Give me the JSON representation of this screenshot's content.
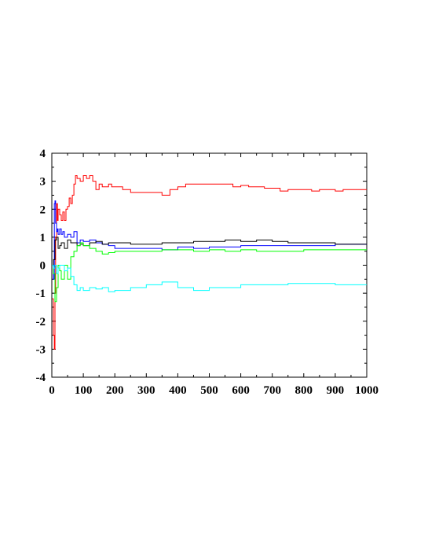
{
  "chart_data": {
    "type": "line",
    "title": "",
    "xlabel": "",
    "ylabel": "",
    "xlim": [
      0,
      1000
    ],
    "ylim": [
      -4,
      4
    ],
    "x_ticks": [
      0,
      100,
      200,
      300,
      400,
      500,
      600,
      700,
      800,
      900,
      1000
    ],
    "y_ticks": [
      -4,
      -3,
      -2,
      -1,
      0,
      1,
      2,
      3,
      4
    ],
    "x_tick_labels": [
      "0",
      "100",
      "200",
      "300",
      "400",
      "500",
      "600",
      "700",
      "800",
      "900",
      "1000"
    ],
    "y_tick_labels": [
      "-4",
      "-3",
      "-2",
      "-1",
      "0",
      "1",
      "2",
      "3",
      "4"
    ],
    "grid": false,
    "legend": "none",
    "series": [
      {
        "color": "#ff0000",
        "x": [
          1,
          5,
          8,
          10,
          12,
          15,
          18,
          20,
          25,
          30,
          35,
          40,
          45,
          50,
          55,
          60,
          65,
          70,
          75,
          80,
          90,
          100,
          110,
          120,
          130,
          140,
          150,
          160,
          170,
          180,
          190,
          200,
          225,
          250,
          275,
          300,
          325,
          350,
          375,
          400,
          425,
          450,
          475,
          500,
          525,
          550,
          575,
          600,
          625,
          650,
          675,
          700,
          725,
          750,
          775,
          800,
          825,
          850,
          875,
          900,
          925,
          950,
          975,
          1000
        ],
        "y": [
          -1.2,
          -2.5,
          -3.0,
          -1.0,
          1.0,
          2.2,
          1.6,
          2.0,
          1.8,
          1.6,
          1.9,
          1.6,
          2.0,
          2.1,
          2.4,
          2.2,
          2.5,
          2.9,
          3.2,
          3.1,
          3.0,
          3.2,
          3.1,
          3.2,
          3.0,
          2.7,
          2.9,
          2.8,
          2.8,
          2.9,
          2.8,
          2.8,
          2.7,
          2.6,
          2.6,
          2.6,
          2.6,
          2.5,
          2.7,
          2.8,
          2.9,
          2.9,
          2.9,
          2.9,
          2.9,
          2.9,
          2.8,
          2.85,
          2.8,
          2.8,
          2.75,
          2.75,
          2.65,
          2.7,
          2.7,
          2.7,
          2.65,
          2.7,
          2.7,
          2.65,
          2.7,
          2.7,
          2.7,
          2.7
        ]
      },
      {
        "color": "#0000ff",
        "x": [
          1,
          5,
          8,
          10,
          12,
          15,
          18,
          20,
          25,
          30,
          35,
          40,
          50,
          60,
          70,
          80,
          90,
          100,
          120,
          140,
          160,
          180,
          200,
          250,
          300,
          350,
          400,
          450,
          500,
          550,
          600,
          650,
          700,
          750,
          800,
          850,
          900,
          950,
          1000
        ],
        "y": [
          0.0,
          -0.5,
          2.2,
          2.3,
          1.5,
          1.2,
          1.3,
          1.1,
          1.3,
          1.1,
          1.2,
          1.0,
          1.1,
          1.0,
          1.2,
          0.8,
          0.9,
          0.85,
          0.9,
          0.8,
          0.75,
          0.7,
          0.6,
          0.6,
          0.6,
          0.55,
          0.65,
          0.6,
          0.65,
          0.65,
          0.7,
          0.7,
          0.7,
          0.7,
          0.7,
          0.7,
          0.75,
          0.75,
          0.75
        ]
      },
      {
        "color": "#000000",
        "x": [
          1,
          5,
          10,
          15,
          20,
          25,
          30,
          40,
          50,
          60,
          70,
          80,
          90,
          100,
          120,
          140,
          160,
          180,
          200,
          250,
          300,
          350,
          400,
          450,
          500,
          550,
          600,
          650,
          700,
          750,
          800,
          850,
          900,
          950,
          1000
        ],
        "y": [
          0.0,
          0.2,
          0.9,
          1.0,
          0.6,
          0.7,
          0.8,
          0.6,
          0.9,
          0.8,
          0.8,
          0.7,
          0.75,
          0.7,
          0.8,
          0.85,
          0.75,
          0.8,
          0.8,
          0.75,
          0.75,
          0.8,
          0.8,
          0.85,
          0.85,
          0.9,
          0.85,
          0.9,
          0.85,
          0.8,
          0.8,
          0.8,
          0.75,
          0.75,
          0.75
        ]
      },
      {
        "color": "#00ff00",
        "x": [
          1,
          5,
          10,
          15,
          20,
          25,
          30,
          40,
          50,
          60,
          70,
          80,
          90,
          100,
          120,
          140,
          160,
          180,
          200,
          250,
          300,
          350,
          400,
          450,
          500,
          550,
          600,
          650,
          700,
          750,
          800,
          850,
          900,
          950,
          1000
        ],
        "y": [
          0.0,
          -0.3,
          -1.3,
          -0.8,
          0.0,
          -0.2,
          -0.5,
          0.0,
          -0.5,
          0.3,
          0.5,
          0.7,
          0.8,
          0.7,
          0.6,
          0.5,
          0.4,
          0.45,
          0.5,
          0.5,
          0.5,
          0.55,
          0.55,
          0.5,
          0.55,
          0.5,
          0.55,
          0.5,
          0.5,
          0.5,
          0.55,
          0.55,
          0.55,
          0.55,
          0.55
        ]
      },
      {
        "color": "#00ffff",
        "x": [
          1,
          5,
          10,
          15,
          20,
          25,
          30,
          40,
          50,
          60,
          70,
          80,
          90,
          100,
          120,
          140,
          160,
          180,
          200,
          250,
          300,
          350,
          400,
          450,
          500,
          550,
          600,
          650,
          700,
          750,
          800,
          850,
          900,
          950,
          1000
        ],
        "y": [
          0.0,
          -0.1,
          0.0,
          -0.3,
          -0.1,
          0.0,
          0.0,
          -0.2,
          -0.1,
          -0.4,
          -0.7,
          -0.9,
          -0.8,
          -0.9,
          -0.8,
          -0.85,
          -0.8,
          -0.95,
          -0.9,
          -0.8,
          -0.7,
          -0.6,
          -0.8,
          -0.9,
          -0.8,
          -0.8,
          -0.7,
          -0.7,
          -0.7,
          -0.65,
          -0.65,
          -0.65,
          -0.7,
          -0.7,
          -0.7
        ]
      }
    ]
  }
}
